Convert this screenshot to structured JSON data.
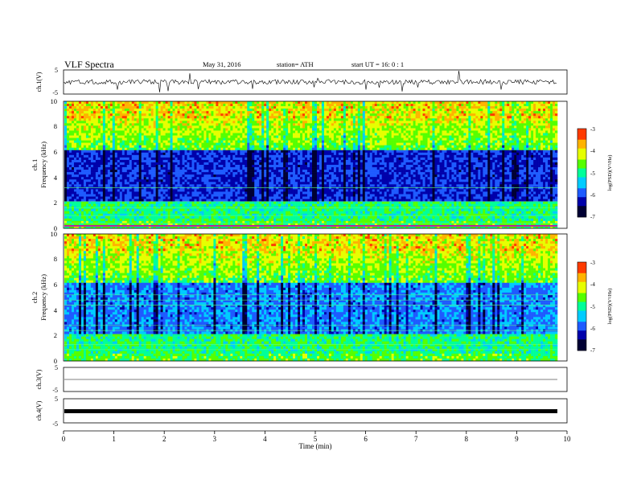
{
  "header": {
    "title": "VLF  Spectra",
    "date": "May 31, 2016",
    "station": "station= ATH",
    "start": "start  UT  =   16: 0  : 1"
  },
  "colors": {
    "scale": [
      "#000033",
      "#0000aa",
      "#1e5bff",
      "#00ccff",
      "#00ff99",
      "#55ff00",
      "#e6ff00",
      "#ffb300",
      "#ff3b00",
      "#ffffff"
    ]
  },
  "chart_data": [
    {
      "type": "line",
      "panel": "ch1-waveform",
      "ylabel": "ch.1(V)",
      "yticks": [
        "5",
        "-5"
      ],
      "ylim": [
        -5,
        5
      ],
      "x_range_min": [
        0,
        9.8
      ]
    },
    {
      "type": "heatmap",
      "panel": "ch1-spectrogram",
      "ylabel_top": "ch.1",
      "ylabel": "Frequency  (kHz)",
      "yticks": [
        "0",
        "2",
        "4",
        "6",
        "8",
        "10"
      ],
      "ylim": [
        0,
        10
      ],
      "colorbar": {
        "label": "log(PSD)(V²/Hz)",
        "ticks": [
          "-3",
          "-4",
          "-5",
          "-6",
          "-7"
        ],
        "range": [
          -7,
          -3
        ]
      }
    },
    {
      "type": "heatmap",
      "panel": "ch2-spectrogram",
      "ylabel_top": "ch.2",
      "ylabel": "Frequency  (kHz)",
      "yticks": [
        "0",
        "2",
        "4",
        "6",
        "8",
        "10"
      ],
      "ylim": [
        0,
        10
      ],
      "colorbar": {
        "label": "log(PSD)(V²/Hz)",
        "ticks": [
          "-3",
          "-4",
          "-5",
          "-6",
          "-7"
        ],
        "range": [
          -7,
          -3
        ]
      }
    },
    {
      "type": "line",
      "panel": "ch3-waveform",
      "ylabel": "ch.3(V)",
      "yticks": [
        "5",
        "-5"
      ],
      "ylim": [
        -5,
        5
      ]
    },
    {
      "type": "line",
      "panel": "ch4-waveform",
      "ylabel": "ch.4(V)",
      "yticks": [
        "5",
        "-5"
      ],
      "ylim": [
        -5,
        5
      ]
    },
    {
      "type": "axis",
      "panel": "time-axis",
      "xlabel": "Time  (min)",
      "xticks": [
        "0",
        "1",
        "2",
        "3",
        "4",
        "5",
        "6",
        "7",
        "8",
        "9",
        "10"
      ],
      "xlim": [
        0,
        10
      ]
    }
  ]
}
